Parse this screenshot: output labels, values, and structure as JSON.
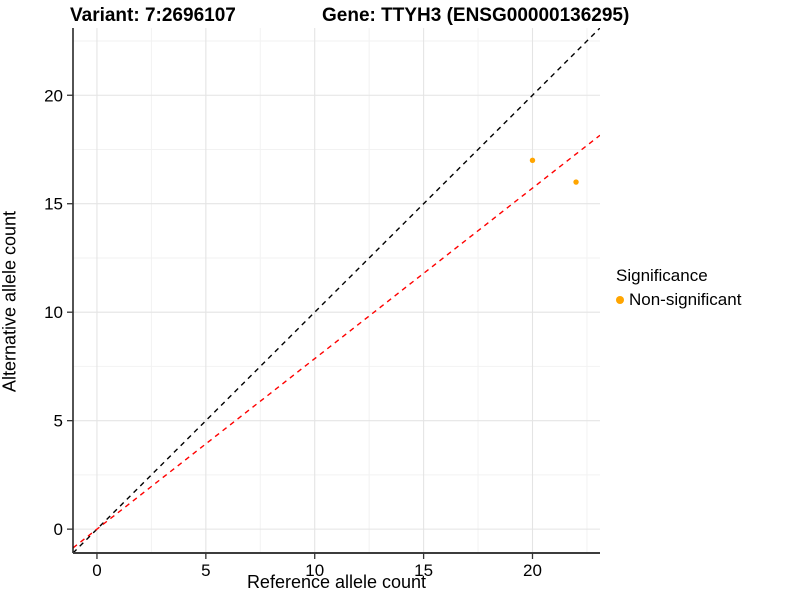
{
  "header": {
    "variant_title": "Variant: 7:2696107",
    "gene_title": "Gene: TTYH3 (ENSG00000136295)"
  },
  "chart_data": {
    "type": "scatter",
    "title_left": "Variant: 7:2696107",
    "title_right": "Gene: TTYH3 (ENSG00000136295)",
    "xlabel": "Reference allele count",
    "ylabel": "Alternative allele count",
    "xlim": [
      -1.1,
      23.1
    ],
    "ylim": [
      -1.1,
      23.1
    ],
    "xticks": [
      0,
      5,
      10,
      15,
      20
    ],
    "yticks": [
      0,
      5,
      10,
      15,
      20
    ],
    "minor_ticks": [
      2.5,
      7.5,
      12.5,
      17.5,
      22.5
    ],
    "grid": true,
    "series": [
      {
        "name": "Non-significant",
        "color": "#FFA500",
        "points": [
          {
            "x": 20,
            "y": 17
          },
          {
            "x": 22,
            "y": 16
          }
        ]
      }
    ],
    "reference_lines": [
      {
        "name": "identity-line",
        "slope": 1,
        "intercept": 0,
        "color": "#000000",
        "style": "dashed"
      },
      {
        "name": "expected-ratio-line",
        "slope": 0.786,
        "intercept": 0,
        "color": "#FF0000",
        "style": "dashed"
      }
    ],
    "legend": {
      "title": "Significance",
      "position": "right",
      "items": [
        {
          "label": "Non-significant",
          "color": "#FFA500",
          "marker": "circle"
        }
      ]
    },
    "style": {
      "major_grid_color": "#e4e4e4",
      "minor_grid_color": "#f2f2f2",
      "axis_line_color": "#3c3c3c",
      "tick_color": "#333333",
      "text_color": "#000000",
      "background": "#ffffff"
    }
  }
}
